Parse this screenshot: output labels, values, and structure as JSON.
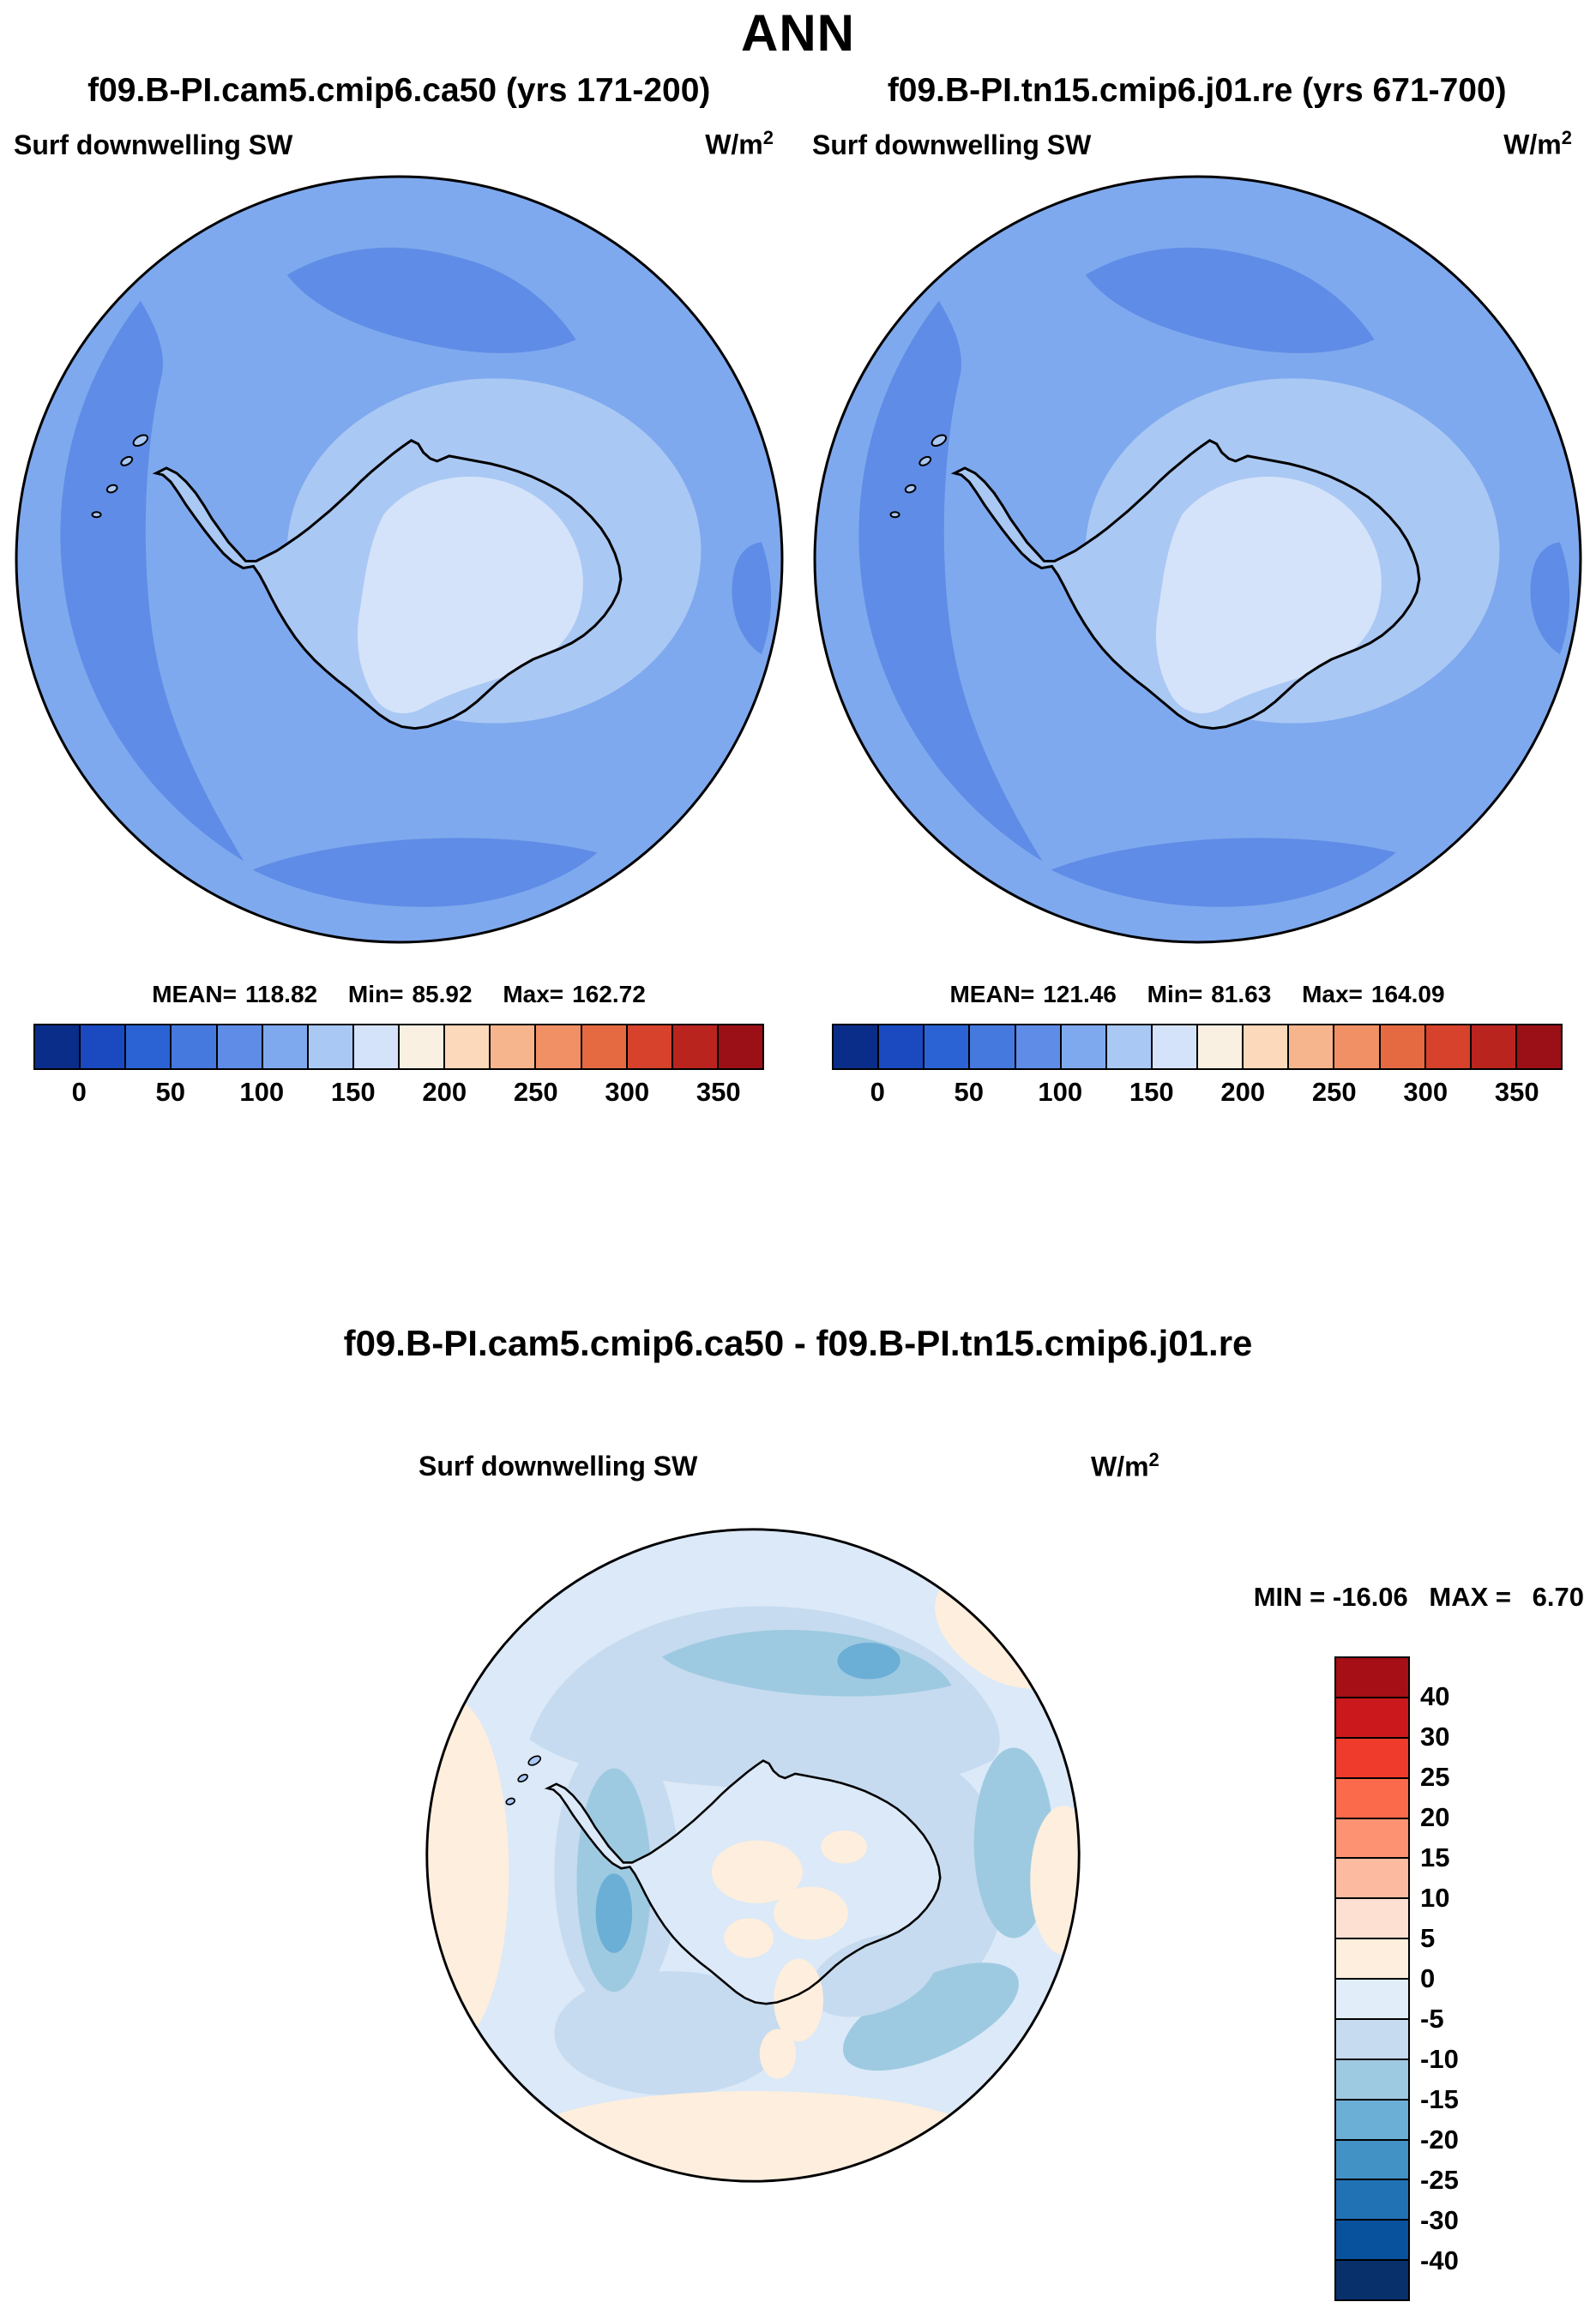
{
  "page": {
    "title": "ANN"
  },
  "subtitle": {
    "left": "f09.B-PI.cam5.cmip6.ca50 (yrs 171-200)",
    "right": "f09.B-PI.tn15.cmip6.j01.re (yrs 671-700)"
  },
  "panel_left": {
    "field": "Surf downwelling SW",
    "units_base": "W/m",
    "units_exp": "2",
    "mean_label": "MEAN=",
    "mean": "118.82",
    "min_label": "Min=",
    "min": "85.92",
    "max_label": "Max=",
    "max": "162.72"
  },
  "panel_right": {
    "field": "Surf downwelling SW",
    "units_base": "W/m",
    "units_exp": "2",
    "mean_label": "MEAN=",
    "mean": "121.46",
    "min_label": "Min=",
    "min": "81.63",
    "max_label": "Max=",
    "max": "164.09"
  },
  "diff": {
    "title": "f09.B-PI.cam5.cmip6.ca50 - f09.B-PI.tn15.cmip6.j01.re",
    "field": "Surf downwelling SW",
    "units_base": "W/m",
    "units_exp": "2",
    "min_label": "MIN =",
    "min": "-16.06",
    "max_label": "MAX =",
    "max": "6.70"
  },
  "colorbar_h": {
    "colors": [
      "#0a2d89",
      "#1a49c0",
      "#2b63d4",
      "#4579de",
      "#5f8ce6",
      "#7fa9ee",
      "#aac8f4",
      "#d4e3fa",
      "#f9f0e2",
      "#fbd9ba",
      "#f7b58e",
      "#f19065",
      "#e56a42",
      "#d6422b",
      "#ba241f",
      "#9a1016"
    ],
    "ticks": [
      "0",
      "50",
      "100",
      "150",
      "200",
      "250",
      "300",
      "350"
    ]
  },
  "colorbar_v": {
    "colors": [
      "#a50f15",
      "#cb181d",
      "#ef3b2c",
      "#fb6a4a",
      "#fc9272",
      "#fcbba1",
      "#fee0d2",
      "#fdeedd",
      "#e1edf8",
      "#c6dbef",
      "#9ecae1",
      "#6baed6",
      "#4292c6",
      "#2171b5",
      "#08519c",
      "#08306b"
    ],
    "labels": [
      "40",
      "30",
      "25",
      "20",
      "15",
      "10",
      "5",
      "0",
      "-5",
      "-10",
      "-15",
      "-20",
      "-25",
      "-30",
      "-40"
    ]
  },
  "map_colors": {
    "ocean": "#7fa9ee",
    "ocean_dark": "#5f8ce6",
    "coast_light": "#aac8f4",
    "ice_interior": "#d4e3fa",
    "outline": "#000000",
    "diff_base": "#dbe9f8",
    "diff_blue1": "#c6dbef",
    "diff_blue2": "#9ecae1",
    "diff_blue3": "#6baed6",
    "diff_peach": "#fdeedd"
  },
  "chart_data": [
    {
      "type": "heatmap",
      "projection": "south_polar_stereographic",
      "title": "Surf downwelling SW — f09.B-PI.cam5.cmip6.ca50 (yrs 171-200)",
      "units": "W/m2",
      "stats": {
        "mean": 118.82,
        "min": 85.92,
        "max": 162.72
      },
      "colorbar": {
        "orientation": "horizontal",
        "tick_values": [
          0,
          50,
          100,
          150,
          200,
          250,
          300,
          350
        ],
        "cell_interval": 25,
        "range": [
          -25,
          375
        ]
      },
      "legend_position": "bottom"
    },
    {
      "type": "heatmap",
      "projection": "south_polar_stereographic",
      "title": "Surf downwelling SW — f09.B-PI.tn15.cmip6.j01.re (yrs 671-700)",
      "units": "W/m2",
      "stats": {
        "mean": 121.46,
        "min": 81.63,
        "max": 164.09
      },
      "colorbar": {
        "orientation": "horizontal",
        "tick_values": [
          0,
          50,
          100,
          150,
          200,
          250,
          300,
          350
        ],
        "cell_interval": 25,
        "range": [
          -25,
          375
        ]
      },
      "legend_position": "bottom"
    },
    {
      "type": "heatmap",
      "projection": "south_polar_stereographic",
      "title": "Surf downwelling SW — difference (f09.B-PI.cam5.cmip6.ca50 - f09.B-PI.tn15.cmip6.j01.re)",
      "units": "W/m2",
      "stats": {
        "min": -16.06,
        "max": 6.7
      },
      "colorbar": {
        "orientation": "vertical",
        "tick_values": [
          40,
          30,
          25,
          20,
          15,
          10,
          5,
          0,
          -5,
          -10,
          -15,
          -20,
          -25,
          -30,
          -40
        ]
      },
      "legend_position": "right"
    }
  ]
}
